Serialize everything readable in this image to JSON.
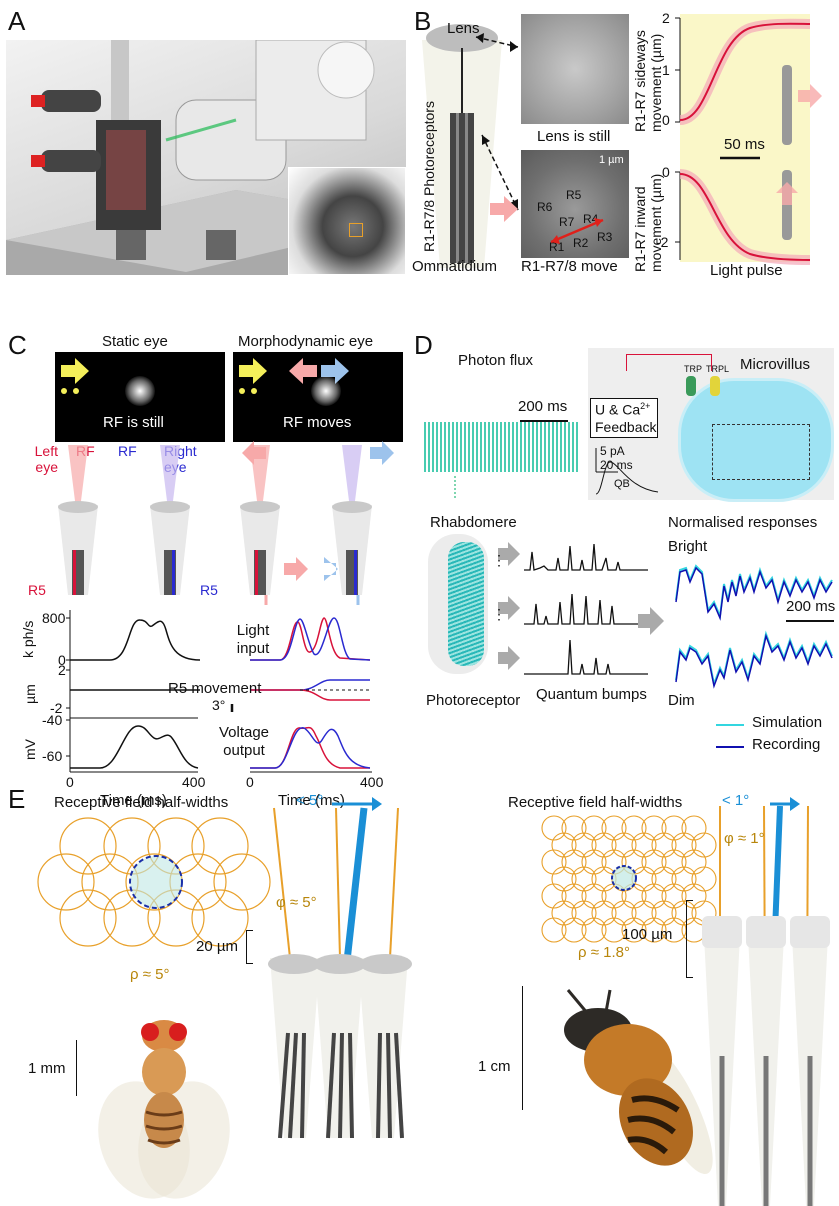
{
  "panels": {
    "A": "A",
    "B": "B",
    "C": "C",
    "D": "D",
    "E": "E"
  },
  "panelB": {
    "lens": "Lens",
    "photoreceptors": "R1-R7/8 Photoreceptors",
    "ommatidium": "Ommatidium",
    "lens_still": "Lens is still",
    "scale_1um": "1 µm",
    "cells": [
      "R5",
      "R6",
      "R7",
      "R4",
      "R3",
      "R1",
      "R2"
    ],
    "move": "R1-R7/8 move",
    "sideways_label": "R1-R7 sideways movement (µm)",
    "inward_label": "R1-R7 inward movement (µm)",
    "scale_50ms": "50 ms",
    "light_pulse": "Light pulse",
    "top_ticks": [
      "2",
      "1",
      "0"
    ],
    "bottom_ticks": [
      "0",
      "-2"
    ]
  },
  "panelC": {
    "static_eye": "Static eye",
    "morpho_eye": "Morphodynamic eye",
    "rf_still": "RF is still",
    "rf_moves": "RF moves",
    "left_eye": "Left eye",
    "rf_red": "RF",
    "rf_blue": "RF",
    "right_eye": "Right eye",
    "r5_left": "R5",
    "r5_right": "R5",
    "kphs": "k ph/s",
    "t800": "800",
    "t0": "0",
    "light_input": "Light input",
    "um": "µm",
    "t2": "2",
    "tm2": "-2",
    "r5_movement": "R5 movement",
    "three_deg": "3°",
    "mv": "mV",
    "tm40": "-40",
    "tm60": "-60",
    "voltage_output": "Voltage output",
    "x0a": "0",
    "x400a": "400",
    "x0b": "0",
    "x400b": "400",
    "time_ms_a": "Time (ms)",
    "time_ms_b": "Time (ms)"
  },
  "panelD": {
    "photon_flux": "Photon flux",
    "scale_200ms": "200 ms",
    "microvillus": "Microvillus",
    "trp": "TRP",
    "trpl": "TRPL",
    "feedback_1": "U & Ca",
    "feedback_sup": "2+",
    "feedback_2": "Feedback",
    "five_pa": "5 pA",
    "twenty_ms": "20 ms",
    "qb": "QB",
    "rhabdomere": "Rhabdomere",
    "photoreceptor": "Photoreceptor",
    "quantum_bumps": "Quantum bumps",
    "normalised": "Normalised responses",
    "bright": "Bright",
    "dim": "Dim",
    "scale_200ms_b": "200 ms",
    "simulation": "Simulation",
    "recording": "Recording",
    "sim_color": "#33d6e0",
    "rec_color": "#1010b0"
  },
  "panelE": {
    "rf_hw_left": "Receptive field half-widths",
    "rf_hw_right": "Receptive field half-widths",
    "lt5": "< 5°",
    "lt1": "< 1°",
    "phi5": "φ ≈ 5°",
    "phi1": "φ ≈ 1°",
    "rho5": "ρ ≈ 5°",
    "rho18": "ρ ≈ 1.8°",
    "um20": "20 µm",
    "um100": "100 µm",
    "mm1": "1 mm",
    "cm1": "1 cm",
    "orange": "#e8a02a",
    "blue": "#1a8fd6"
  }
}
